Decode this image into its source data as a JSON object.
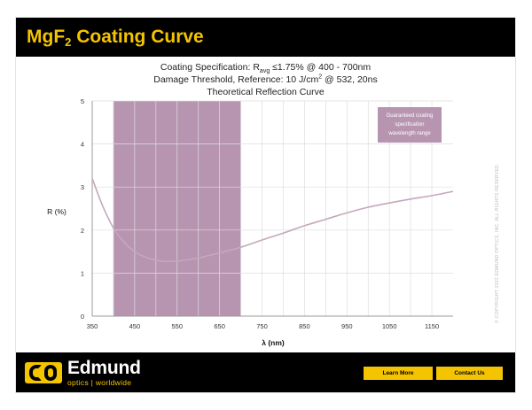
{
  "header": {
    "title_main": "MgF",
    "title_sub": "2",
    "title_rest": " Coating Curve"
  },
  "specs": {
    "line1_pre": "Coating Specification: R",
    "line1_sub": "avg",
    "line1_post": " ≤1.75% @ 400 - 700nm",
    "line2_pre": "Damage Threshold, Reference: 10 J/cm",
    "line2_sup": "2",
    "line2_post": " @ 532, 20ns"
  },
  "chart_data": {
    "type": "line",
    "title": "Theoretical Reflection Curve",
    "xlabel": "λ (nm)",
    "ylabel": "R (%)",
    "xlim": [
      350,
      1200
    ],
    "ylim": [
      0,
      5
    ],
    "xticks": [
      350,
      450,
      550,
      650,
      750,
      850,
      950,
      1050,
      1150
    ],
    "yticks": [
      0,
      1,
      2,
      3,
      4,
      5
    ],
    "grid": true,
    "colors": {
      "curve": "#c4a8bc",
      "band": "#b795b1",
      "grid": "#dddddd",
      "axis": "#9a9a9a"
    },
    "highlight_band": {
      "from": 400,
      "to": 700,
      "label": "Guaranteed coating specification wavelength range"
    },
    "series": [
      {
        "x": [
          350,
          375,
          400,
          425,
          450,
          475,
          500,
          525,
          550,
          575,
          600,
          625,
          650,
          700,
          750,
          800,
          850,
          900,
          950,
          1000,
          1050,
          1100,
          1150,
          1200
        ],
        "y": [
          3.2,
          2.55,
          2.05,
          1.72,
          1.5,
          1.37,
          1.3,
          1.27,
          1.28,
          1.31,
          1.35,
          1.41,
          1.47,
          1.6,
          1.77,
          1.93,
          2.1,
          2.25,
          2.4,
          2.53,
          2.63,
          2.72,
          2.8,
          2.9
        ]
      }
    ]
  },
  "watermark": "© COPYRIGHT 2022 EDMUND OPTICS, INC. ALL RIGHTS RESERVED",
  "footer": {
    "brand": "Edmund",
    "tagline": "optics | worldwide",
    "learn_more": "Learn More",
    "contact_us": "Contact Us"
  }
}
